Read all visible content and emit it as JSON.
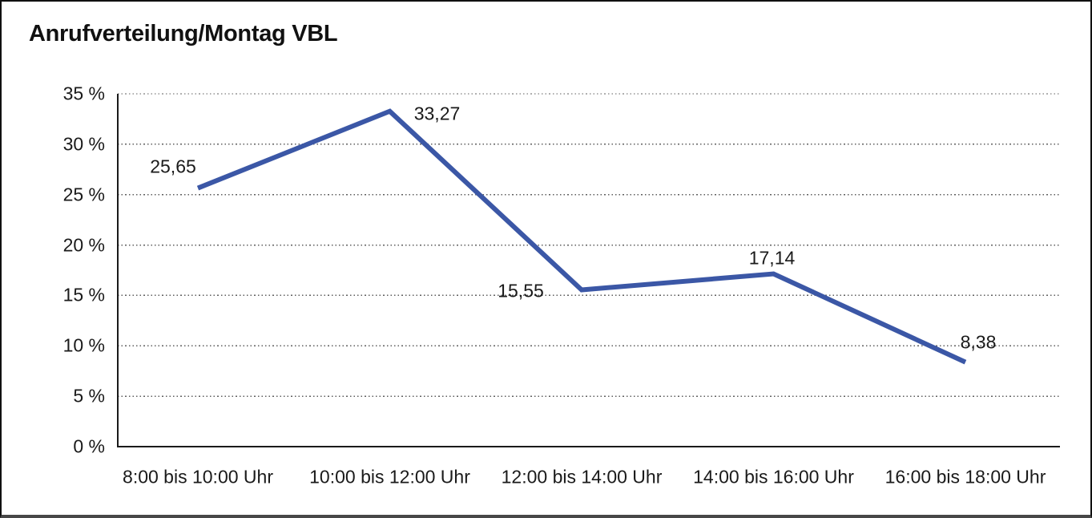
{
  "frame": {
    "background": "#ffffff",
    "border_color": "#101010",
    "bottom_edge_color": "#474747"
  },
  "chart_data": {
    "type": "line",
    "title": "Anrufverteilung/Montag VBL",
    "categories": [
      "8:00 bis 10:00 Uhr",
      "10:00 bis 12:00 Uhr",
      "12:00 bis 14:00 Uhr",
      "14:00 bis 16:00 Uhr",
      "16:00 bis 18:00 Uhr"
    ],
    "values": [
      25.65,
      33.27,
      15.55,
      17.14,
      8.38
    ],
    "data_labels": [
      "25,65",
      "33,27",
      "15,55",
      "17,14",
      "8,38"
    ],
    "y_axis": {
      "tick_labels": [
        "35 %",
        "30 %",
        "25 %",
        "20 %",
        "15 %",
        "10 %",
        "5 %",
        "0 %"
      ],
      "tick_values": [
        35,
        30,
        25,
        20,
        15,
        10,
        5,
        0
      ],
      "min": 0,
      "max": 35,
      "step": 5
    },
    "xlabel": "",
    "ylabel": "",
    "ylim": [
      0,
      35
    ],
    "grid": "horizontal-dotted",
    "legend": "none",
    "line_color": "#3B57A6",
    "grid_color": "#5f5f5f",
    "axis_color": "#1a1a1a",
    "text_color": "#1a1a1a"
  }
}
